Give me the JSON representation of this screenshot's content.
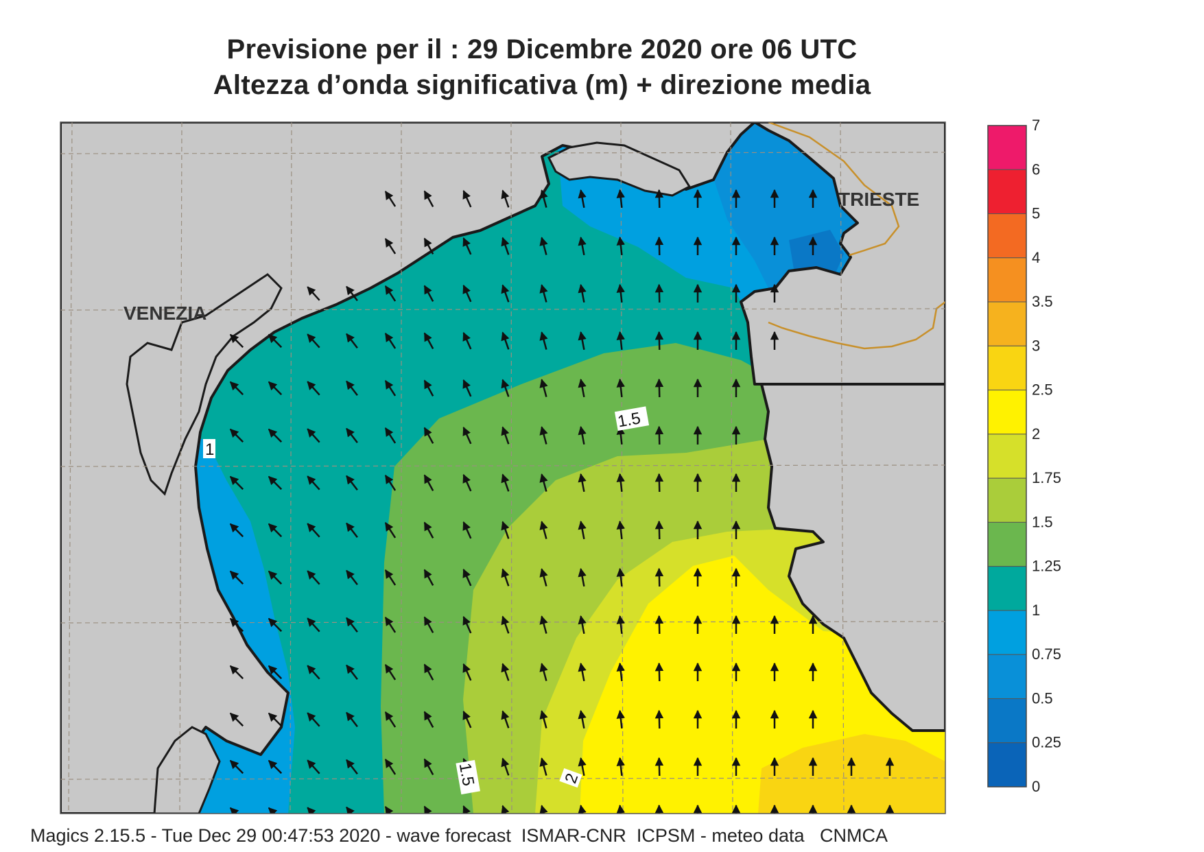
{
  "header": {
    "title_line1": "Previsione per il  :  29 Dicembre  2020   ore 06 UTC",
    "title_line2": "Altezza d’onda significativa (m) + direzione media"
  },
  "map": {
    "city_labels": [
      {
        "id": "venezia",
        "text": "VENEZIA"
      },
      {
        "id": "trieste",
        "text": "TRIESTE"
      }
    ],
    "contour_labels": [
      {
        "id": "c1",
        "text": "1"
      },
      {
        "id": "c15a",
        "text": "1.5"
      },
      {
        "id": "c15b",
        "text": "1.5"
      },
      {
        "id": "c2",
        "text": "2"
      }
    ],
    "colors": {
      "land": "#c8c8c8",
      "coastline": "#1a1a1a",
      "border": "#c8902a",
      "grid": "#9a8f80"
    }
  },
  "legend": {
    "levels": [
      {
        "label": "7",
        "color": "#ee1a6a"
      },
      {
        "label": "6",
        "color": "#ee2030"
      },
      {
        "label": "5",
        "color": "#f36a22"
      },
      {
        "label": "4",
        "color": "#f59020"
      },
      {
        "label": "3.5",
        "color": "#f6b21e"
      },
      {
        "label": "3",
        "color": "#f9d512"
      },
      {
        "label": "2.5",
        "color": "#fff200"
      },
      {
        "label": "2",
        "color": "#d6e02a"
      },
      {
        "label": "1.75",
        "color": "#aacd3a"
      },
      {
        "label": "1.5",
        "color": "#6bb74e"
      },
      {
        "label": "1.25",
        "color": "#00a99d"
      },
      {
        "label": "1",
        "color": "#00a0e0"
      },
      {
        "label": "0.75",
        "color": "#0990d8"
      },
      {
        "label": "0.5",
        "color": "#0a78c6"
      },
      {
        "label": "0.25",
        "color": "#0a64b8"
      },
      {
        "label": "0",
        "color": ""
      }
    ]
  },
  "footer": {
    "text": "Magics 2.15.5 - Tue Dec 29 00:47:53 2020 - wave forecast  ISMAR-CNR  ICPSM - meteo data   CNMCA"
  }
}
